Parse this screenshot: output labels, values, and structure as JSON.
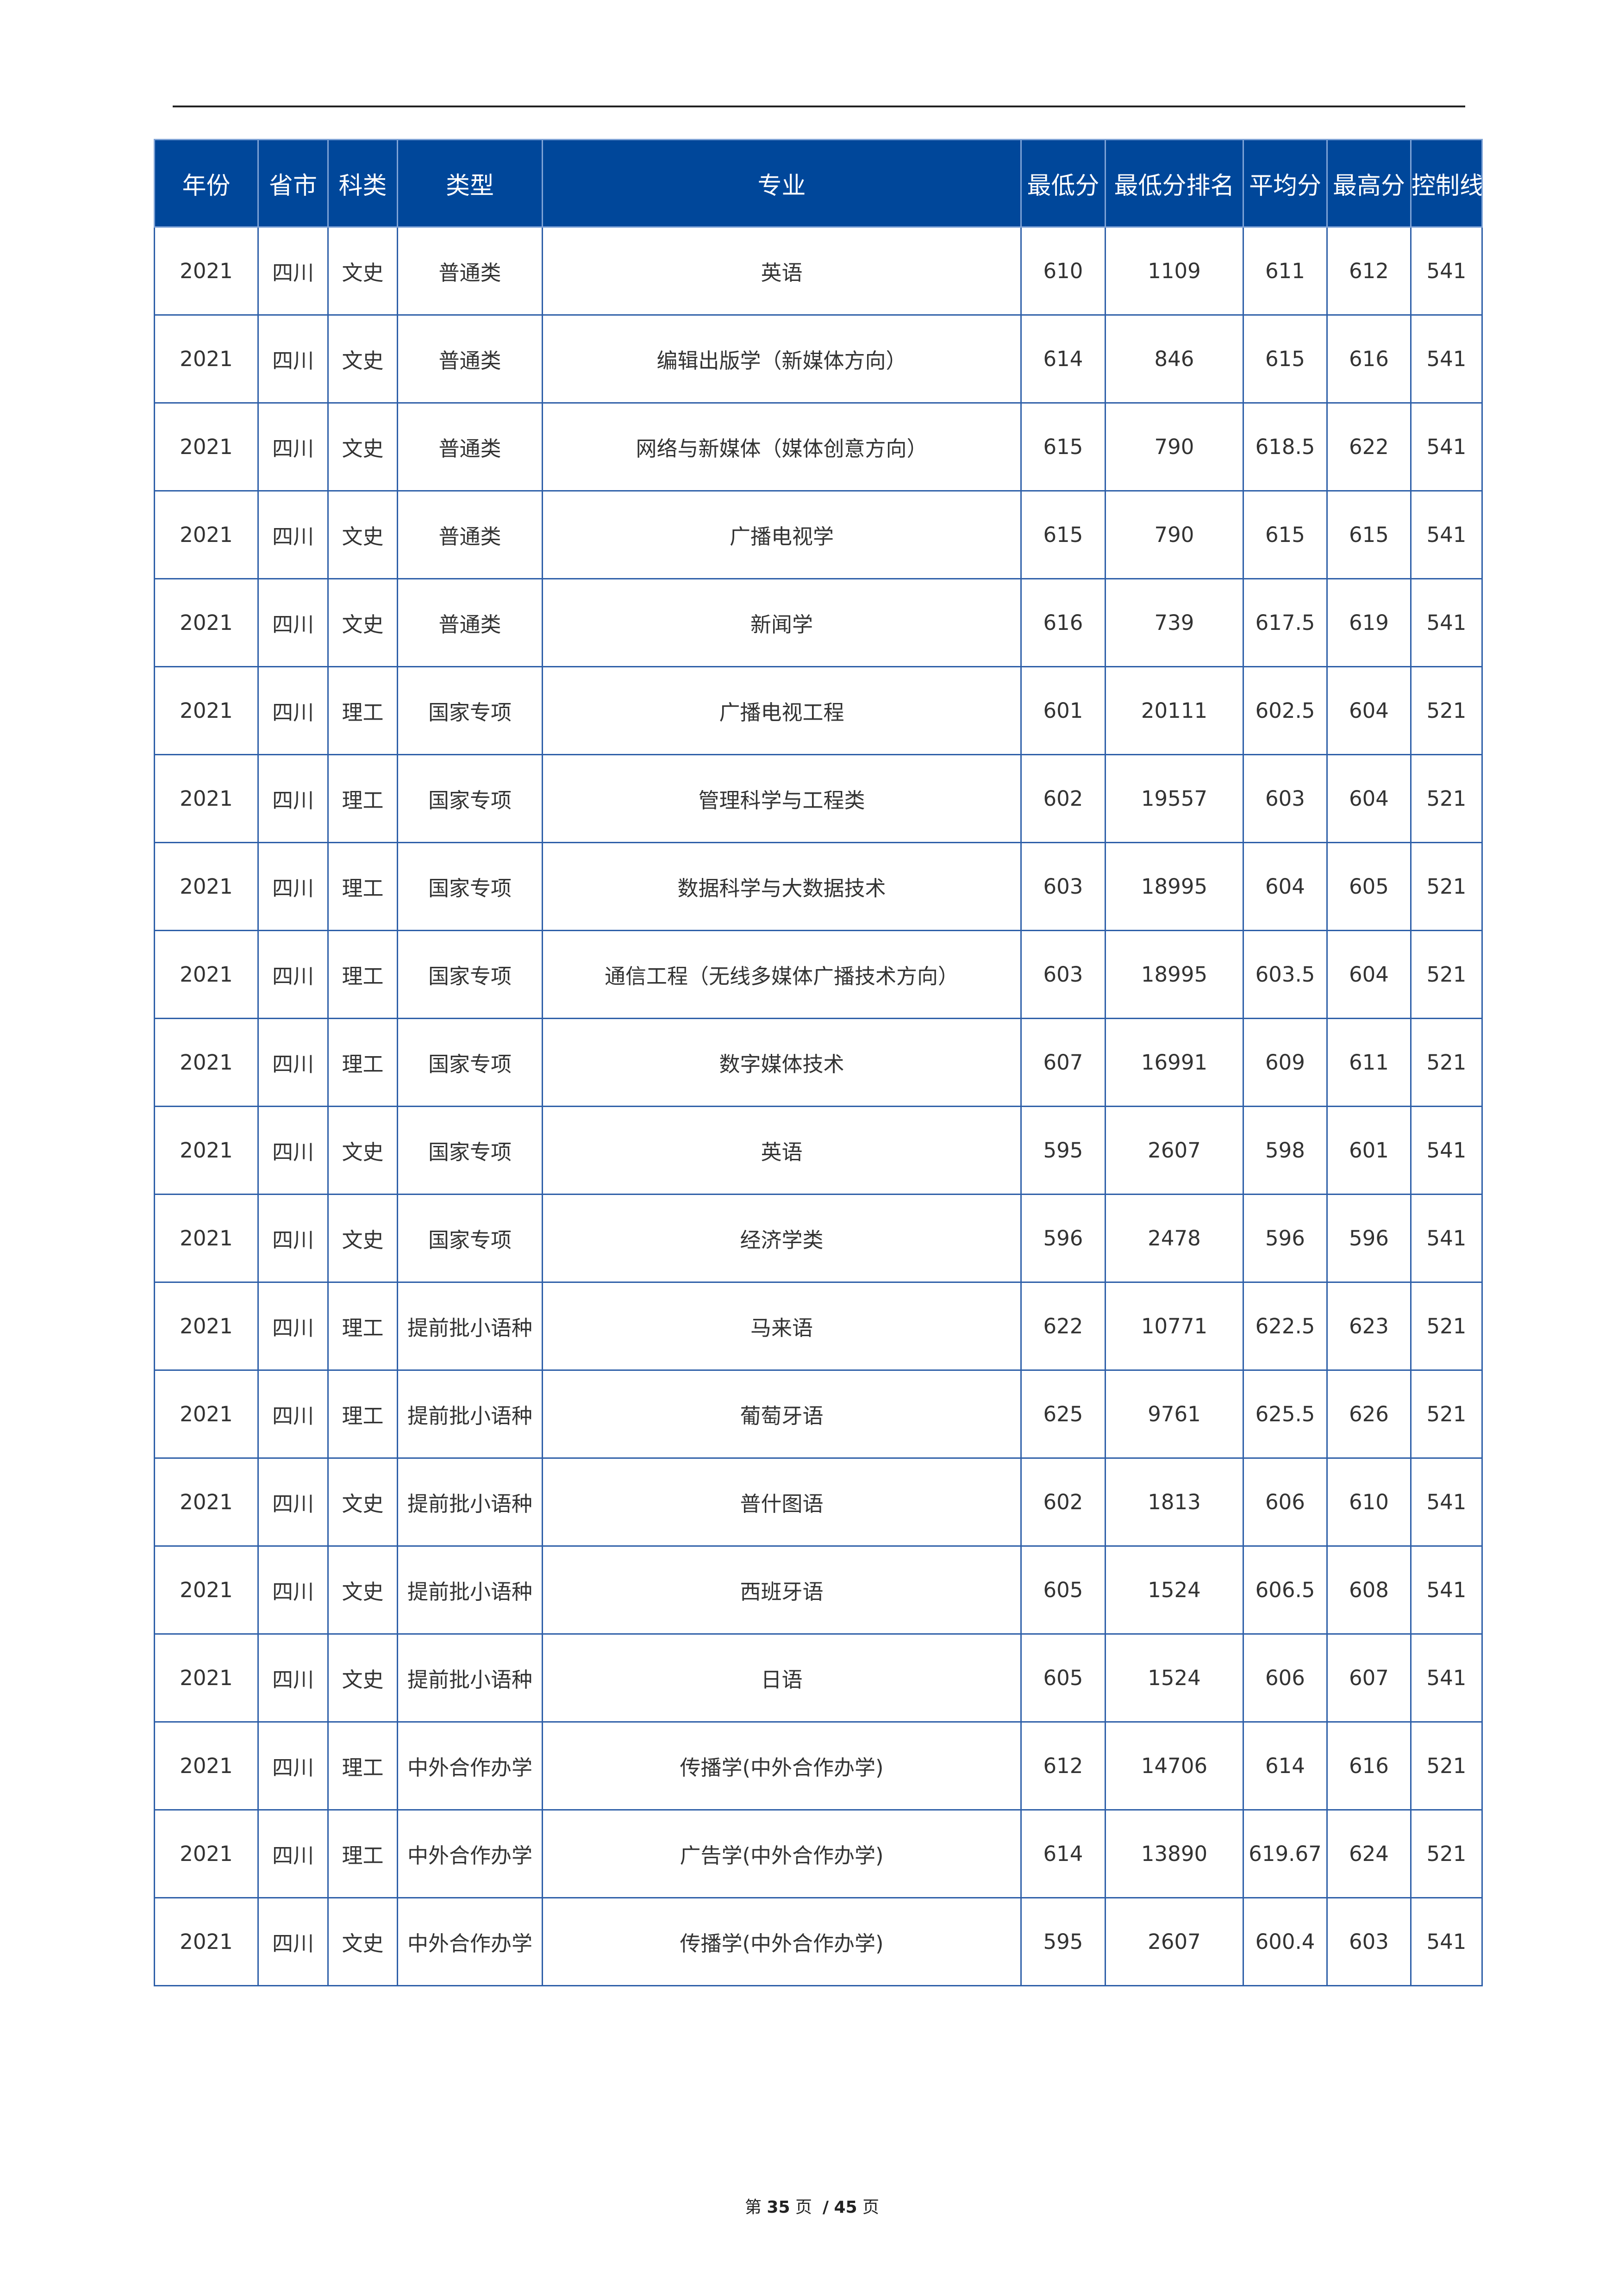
{
  "table": {
    "headers": [
      "年份",
      "省市",
      "科类",
      "类型",
      "专业",
      "最低分",
      "最低分排名",
      "平均分",
      "最高分",
      "控制线"
    ],
    "rows": [
      [
        "2021",
        "四川",
        "文史",
        "普通类",
        "英语",
        "610",
        "1109",
        "611",
        "612",
        "541"
      ],
      [
        "2021",
        "四川",
        "文史",
        "普通类",
        "编辑出版学（新媒体方向）",
        "614",
        "846",
        "615",
        "616",
        "541"
      ],
      [
        "2021",
        "四川",
        "文史",
        "普通类",
        "网络与新媒体（媒体创意方向）",
        "615",
        "790",
        "618.5",
        "622",
        "541"
      ],
      [
        "2021",
        "四川",
        "文史",
        "普通类",
        "广播电视学",
        "615",
        "790",
        "615",
        "615",
        "541"
      ],
      [
        "2021",
        "四川",
        "文史",
        "普通类",
        "新闻学",
        "616",
        "739",
        "617.5",
        "619",
        "541"
      ],
      [
        "2021",
        "四川",
        "理工",
        "国家专项",
        "广播电视工程",
        "601",
        "20111",
        "602.5",
        "604",
        "521"
      ],
      [
        "2021",
        "四川",
        "理工",
        "国家专项",
        "管理科学与工程类",
        "602",
        "19557",
        "603",
        "604",
        "521"
      ],
      [
        "2021",
        "四川",
        "理工",
        "国家专项",
        "数据科学与大数据技术",
        "603",
        "18995",
        "604",
        "605",
        "521"
      ],
      [
        "2021",
        "四川",
        "理工",
        "国家专项",
        "通信工程（无线多媒体广播技术方向）",
        "603",
        "18995",
        "603.5",
        "604",
        "521"
      ],
      [
        "2021",
        "四川",
        "理工",
        "国家专项",
        "数字媒体技术",
        "607",
        "16991",
        "609",
        "611",
        "521"
      ],
      [
        "2021",
        "四川",
        "文史",
        "国家专项",
        "英语",
        "595",
        "2607",
        "598",
        "601",
        "541"
      ],
      [
        "2021",
        "四川",
        "文史",
        "国家专项",
        "经济学类",
        "596",
        "2478",
        "596",
        "596",
        "541"
      ],
      [
        "2021",
        "四川",
        "理工",
        "提前批小语种",
        "马来语",
        "622",
        "10771",
        "622.5",
        "623",
        "521"
      ],
      [
        "2021",
        "四川",
        "理工",
        "提前批小语种",
        "葡萄牙语",
        "625",
        "9761",
        "625.5",
        "626",
        "521"
      ],
      [
        "2021",
        "四川",
        "文史",
        "提前批小语种",
        "普什图语",
        "602",
        "1813",
        "606",
        "610",
        "541"
      ],
      [
        "2021",
        "四川",
        "文史",
        "提前批小语种",
        "西班牙语",
        "605",
        "1524",
        "606.5",
        "608",
        "541"
      ],
      [
        "2021",
        "四川",
        "文史",
        "提前批小语种",
        "日语",
        "605",
        "1524",
        "606",
        "607",
        "541"
      ],
      [
        "2021",
        "四川",
        "理工",
        "中外合作办学",
        "传播学(中外合作办学)",
        "612",
        "14706",
        "614",
        "616",
        "521"
      ],
      [
        "2021",
        "四川",
        "理工",
        "中外合作办学",
        "广告学(中外合作办学)",
        "614",
        "13890",
        "619.67",
        "624",
        "521"
      ],
      [
        "2021",
        "四川",
        "文史",
        "中外合作办学",
        "传播学(中外合作办学)",
        "595",
        "2607",
        "600.4",
        "603",
        "541"
      ]
    ]
  },
  "footer": {
    "prefix": "第",
    "page": "35",
    "mid": "页",
    "sep": "/",
    "total": "45",
    "suffix": "页"
  },
  "colors": {
    "header_bg": "#00479a",
    "border": "#2e5fa8"
  }
}
